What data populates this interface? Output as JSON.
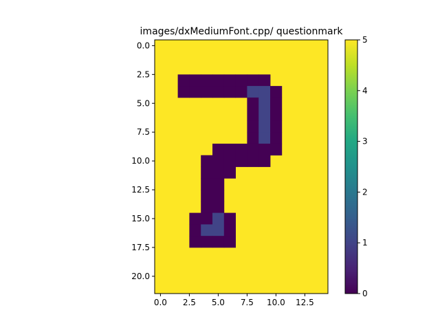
{
  "chart_data": {
    "type": "heatmap",
    "title": "images/dxMediumFont.cpp/ questionmark",
    "xlabel": "",
    "ylabel": "",
    "n_rows": 22,
    "n_cols": 15,
    "xlim": [
      -0.5,
      14.5
    ],
    "ylim": [
      21.5,
      -0.5
    ],
    "x_ticks": [
      0.0,
      2.5,
      5.0,
      7.5,
      10.0,
      12.5
    ],
    "x_tick_labels": [
      "0.0",
      "2.5",
      "5.0",
      "7.5",
      "10.0",
      "12.5"
    ],
    "y_ticks": [
      0.0,
      2.5,
      5.0,
      7.5,
      10.0,
      12.5,
      15.0,
      17.5,
      20.0
    ],
    "y_tick_labels": [
      "0.0",
      "2.5",
      "5.0",
      "7.5",
      "10.0",
      "12.5",
      "15.0",
      "17.5",
      "20.0"
    ],
    "colorbar": {
      "vmin": 0,
      "vmax": 5,
      "ticks": [
        0,
        1,
        2,
        3,
        4,
        5
      ],
      "tick_labels": [
        "0",
        "1",
        "2",
        "3",
        "4",
        "5"
      ],
      "colormap": "viridis"
    },
    "background_value": 5,
    "values": [
      [
        5,
        5,
        5,
        5,
        5,
        5,
        5,
        5,
        5,
        5,
        5,
        5,
        5,
        5,
        5
      ],
      [
        5,
        5,
        5,
        5,
        5,
        5,
        5,
        5,
        5,
        5,
        5,
        5,
        5,
        5,
        5
      ],
      [
        5,
        5,
        5,
        5,
        5,
        5,
        5,
        5,
        5,
        5,
        5,
        5,
        5,
        5,
        5
      ],
      [
        5,
        5,
        0,
        0,
        0,
        0,
        0,
        0,
        0,
        0,
        5,
        5,
        5,
        5,
        5
      ],
      [
        5,
        5,
        0,
        0,
        0,
        0,
        0,
        0,
        1,
        1,
        0,
        5,
        5,
        5,
        5
      ],
      [
        5,
        5,
        5,
        5,
        5,
        5,
        5,
        5,
        0,
        1,
        0,
        5,
        5,
        5,
        5
      ],
      [
        5,
        5,
        5,
        5,
        5,
        5,
        5,
        5,
        0,
        1,
        0,
        5,
        5,
        5,
        5
      ],
      [
        5,
        5,
        5,
        5,
        5,
        5,
        5,
        5,
        0,
        1,
        0,
        5,
        5,
        5,
        5
      ],
      [
        5,
        5,
        5,
        5,
        5,
        5,
        5,
        5,
        0,
        1,
        0,
        5,
        5,
        5,
        5
      ],
      [
        5,
        5,
        5,
        5,
        5,
        0,
        0,
        0,
        0,
        0,
        0,
        5,
        5,
        5,
        5
      ],
      [
        5,
        5,
        5,
        5,
        0,
        0,
        0,
        0,
        0,
        0,
        5,
        5,
        5,
        5,
        5
      ],
      [
        5,
        5,
        5,
        5,
        0,
        0,
        0,
        5,
        5,
        5,
        5,
        5,
        5,
        5,
        5
      ],
      [
        5,
        5,
        5,
        5,
        0,
        0,
        5,
        5,
        5,
        5,
        5,
        5,
        5,
        5,
        5
      ],
      [
        5,
        5,
        5,
        5,
        0,
        0,
        5,
        5,
        5,
        5,
        5,
        5,
        5,
        5,
        5
      ],
      [
        5,
        5,
        5,
        5,
        0,
        0,
        5,
        5,
        5,
        5,
        5,
        5,
        5,
        5,
        5
      ],
      [
        5,
        5,
        5,
        0,
        0,
        1,
        0,
        5,
        5,
        5,
        5,
        5,
        5,
        5,
        5
      ],
      [
        5,
        5,
        5,
        0,
        1,
        1,
        0,
        5,
        5,
        5,
        5,
        5,
        5,
        5,
        5
      ],
      [
        5,
        5,
        5,
        0,
        0,
        0,
        0,
        5,
        5,
        5,
        5,
        5,
        5,
        5,
        5
      ],
      [
        5,
        5,
        5,
        5,
        5,
        5,
        5,
        5,
        5,
        5,
        5,
        5,
        5,
        5,
        5
      ],
      [
        5,
        5,
        5,
        5,
        5,
        5,
        5,
        5,
        5,
        5,
        5,
        5,
        5,
        5,
        5
      ],
      [
        5,
        5,
        5,
        5,
        5,
        5,
        5,
        5,
        5,
        5,
        5,
        5,
        5,
        5,
        5
      ],
      [
        5,
        5,
        5,
        5,
        5,
        5,
        5,
        5,
        5,
        5,
        5,
        5,
        5,
        5,
        5
      ]
    ]
  }
}
